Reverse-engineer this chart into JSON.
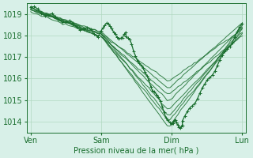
{
  "bg_color": "#d8f0e8",
  "grid_color": "#b0d8c0",
  "line_color": "#1a6e2e",
  "ylim": [
    1013.5,
    1019.5
  ],
  "yticks": [
    1014,
    1015,
    1016,
    1017,
    1018,
    1019
  ],
  "xtick_labels": [
    "Ven",
    "Sam",
    "Dim",
    "Lun"
  ],
  "xtick_positions": [
    0,
    1,
    2,
    3
  ],
  "xlabel": "Pression niveau de la mer( hPa )",
  "lines_params": [
    [
      1019.3,
      1018.1,
      1013.8,
      1018.5
    ],
    [
      1019.3,
      1018.0,
      1014.1,
      1018.2
    ],
    [
      1019.2,
      1018.2,
      1014.3,
      1018.3
    ],
    [
      1019.3,
      1018.0,
      1014.6,
      1018.1
    ],
    [
      1019.2,
      1018.1,
      1015.0,
      1018.4
    ],
    [
      1019.1,
      1018.0,
      1015.3,
      1018.0
    ],
    [
      1019.3,
      1018.2,
      1015.6,
      1018.6
    ],
    [
      1019.2,
      1018.1,
      1015.9,
      1018.3
    ]
  ]
}
